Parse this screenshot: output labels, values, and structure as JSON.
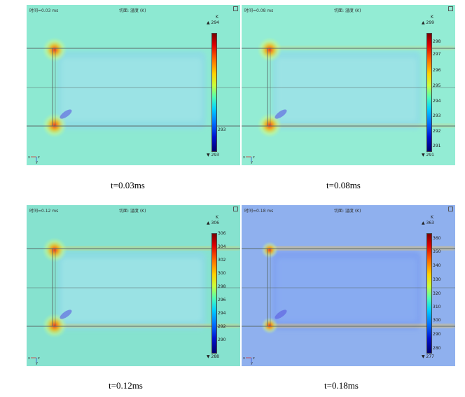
{
  "panels": [
    {
      "time_label": "时间=0.03 ms",
      "quantity_label": "切面: 温度 (K)",
      "unit": "K",
      "max": "▲ 294",
      "min": "▼ 293",
      "ticks": [
        "293"
      ],
      "caption": "t=0.03ms",
      "background": "#8de9d2",
      "fill_level": 0.15
    },
    {
      "time_label": "时间=0.08 ms",
      "quantity_label": "切面: 温度 (K)",
      "unit": "K",
      "max": "▲ 299",
      "min": "▼ 291",
      "ticks": [
        "298",
        "297",
        "296",
        "295",
        "294",
        "293",
        "292",
        "291"
      ],
      "caption": "t=0.08ms",
      "background": "#93ecd4",
      "fill_level": 0.3
    },
    {
      "time_label": "时间=0.12 ms",
      "quantity_label": "切面: 温度 (K)",
      "unit": "K",
      "max": "▲ 306",
      "min": "▼ 288",
      "ticks": [
        "306",
        "304",
        "302",
        "300",
        "298",
        "296",
        "294",
        "292",
        "290"
      ],
      "caption": "t=0.12ms",
      "background": "#86e2cf",
      "fill_level": 0.45
    },
    {
      "time_label": "时间=0.18 ms",
      "quantity_label": "切面: 温度 (K)",
      "unit": "K",
      "max": "▲ 363",
      "min": "▼ 277",
      "ticks": [
        "360",
        "350",
        "340",
        "330",
        "320",
        "310",
        "300",
        "290",
        "280"
      ],
      "caption": "t=0.18ms",
      "background": "#8fb0ee",
      "fill_level": 0.6
    }
  ],
  "axes": {
    "x": "x",
    "y": "y",
    "z": "z"
  }
}
